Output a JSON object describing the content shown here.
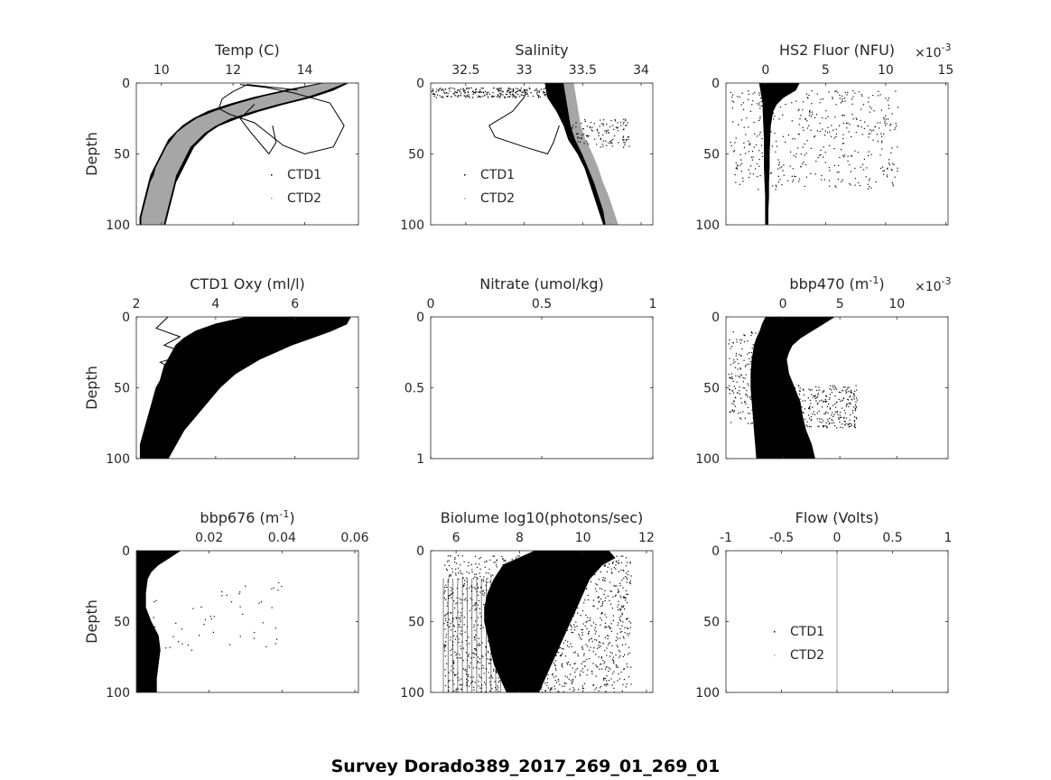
{
  "suptitle": "Survey Dorado389_2017_269_01_269_01",
  "chart_data": [
    {
      "type": "scatter",
      "title": "Temp (C)",
      "ylabel": "Depth",
      "xlim": [
        9.3,
        15.5
      ],
      "xticks": [
        "10",
        "12",
        "14"
      ],
      "xtick_values": [
        10,
        12,
        14
      ],
      "ylim": [
        0,
        100
      ],
      "yticks": [
        "0",
        "50",
        "100"
      ],
      "ytick_values": [
        0,
        50,
        100
      ],
      "legend": [
        "CTD1",
        "CTD2"
      ],
      "legend_placement": "lower-right",
      "series": [
        {
          "name": "CTD1",
          "color": "#000000",
          "style": "profile_band",
          "depth": [
            0,
            5,
            10,
            15,
            20,
            25,
            30,
            35,
            40,
            45,
            50,
            55,
            60,
            65,
            70,
            75,
            80,
            85,
            90,
            95,
            100
          ],
          "low": [
            14.5,
            13.5,
            12.6,
            11.9,
            11.3,
            10.9,
            10.6,
            10.4,
            10.2,
            10.1,
            10.0,
            9.9,
            9.8,
            9.7,
            9.65,
            9.6,
            9.55,
            9.5,
            9.45,
            9.4,
            9.4
          ],
          "high": [
            15.2,
            14.8,
            14.2,
            13.4,
            12.7,
            12.1,
            11.6,
            11.3,
            11.1,
            10.9,
            10.8,
            10.7,
            10.6,
            10.5,
            10.4,
            10.35,
            10.3,
            10.25,
            10.2,
            10.15,
            10.1
          ]
        },
        {
          "name": "CTD2",
          "color": "#a6a6a6",
          "style": "profile_band",
          "depth": [
            0,
            5,
            10,
            15,
            20,
            25,
            30,
            35,
            40,
            45,
            50,
            55,
            60,
            65,
            70,
            75,
            80,
            85,
            90,
            95,
            100
          ],
          "low": [
            14.6,
            13.7,
            12.8,
            12.1,
            11.5,
            11.0,
            10.7,
            10.45,
            10.3,
            10.15,
            10.05,
            9.95,
            9.85,
            9.8,
            9.7,
            9.65,
            9.6,
            9.55,
            9.5,
            9.45,
            9.45
          ],
          "high": [
            15.1,
            14.6,
            14.0,
            13.2,
            12.5,
            11.9,
            11.5,
            11.2,
            11.0,
            10.8,
            10.7,
            10.6,
            10.5,
            10.4,
            10.35,
            10.3,
            10.25,
            10.2,
            10.15,
            10.1,
            10.05
          ]
        },
        {
          "name": "",
          "color": "#000000",
          "style": "trace",
          "x": [
            13.8,
            12.4,
            12.0,
            11.7,
            11.6,
            11.9,
            12.6,
            13.0,
            13.4,
            14.0,
            14.8,
            15.1,
            14.7,
            13.7,
            12.9,
            12.2
          ],
          "y": [
            5,
            1,
            6,
            11,
            18,
            22,
            28,
            36,
            44,
            50,
            45,
            30,
            14,
            7,
            3,
            1
          ]
        },
        {
          "name": "",
          "color": "#000000",
          "style": "trace",
          "x": [
            12.6,
            12.2,
            12.5,
            13.0,
            13.2,
            13.1
          ],
          "y": [
            15,
            25,
            35,
            50,
            42,
            30
          ]
        }
      ]
    },
    {
      "type": "scatter",
      "title": "Salinity",
      "ylabel": "",
      "xlim": [
        32.2,
        34.1
      ],
      "xticks": [
        "32.5",
        "33",
        "33.5",
        "34"
      ],
      "xtick_values": [
        32.5,
        33,
        33.5,
        34
      ],
      "ylim": [
        0,
        100
      ],
      "yticks": [
        "0",
        "50",
        "100"
      ],
      "ytick_values": [
        0,
        50,
        100
      ],
      "legend": [
        "CTD1",
        "CTD2"
      ],
      "legend_placement": "lower-left",
      "series": [
        {
          "name": "CTD1",
          "color": "#000000",
          "style": "profile_band",
          "depth": [
            0,
            10,
            20,
            30,
            40,
            50,
            60,
            70,
            80,
            90,
            100
          ],
          "low": [
            33.18,
            33.2,
            33.28,
            33.34,
            33.38,
            33.46,
            33.52,
            33.56,
            33.6,
            33.64,
            33.68
          ],
          "high": [
            33.4,
            33.42,
            33.42,
            33.44,
            33.48,
            33.55,
            33.6,
            33.64,
            33.68,
            33.72,
            33.75
          ]
        },
        {
          "name": "CTD2",
          "color": "#a6a6a6",
          "style": "profile_band",
          "depth": [
            0,
            10,
            20,
            30,
            40,
            50,
            60,
            70,
            80,
            90,
            100
          ],
          "low": [
            33.34,
            33.36,
            33.38,
            33.4,
            33.44,
            33.5,
            33.55,
            33.6,
            33.64,
            33.68,
            33.7
          ],
          "high": [
            33.42,
            33.44,
            33.46,
            33.48,
            33.52,
            33.58,
            33.63,
            33.67,
            33.72,
            33.76,
            33.8
          ]
        },
        {
          "name": "",
          "color": "#000000",
          "style": "trace",
          "x": [
            33.0,
            32.9,
            32.7,
            32.75,
            33.0,
            33.2,
            33.25,
            33.3
          ],
          "y": [
            10,
            20,
            30,
            38,
            45,
            50,
            42,
            30
          ]
        },
        {
          "name": "",
          "color": "#000000",
          "style": "scatter_cloud",
          "xrange": [
            32.2,
            33.2
          ],
          "yrange": [
            3,
            10
          ],
          "n": 260
        },
        {
          "name": "",
          "color": "#000000",
          "style": "scatter_cloud",
          "xrange": [
            33.4,
            33.9
          ],
          "yrange": [
            25,
            45
          ],
          "n": 120
        }
      ]
    },
    {
      "type": "scatter",
      "title": "HS2 Fluor (NFU)",
      "exponent": "×10",
      "exponent_power": "-3",
      "ylabel": "",
      "xlim": [
        -3.3,
        15.2
      ],
      "xticks": [
        "0",
        "5",
        "10",
        "15"
      ],
      "xtick_values": [
        0,
        5,
        10,
        15
      ],
      "ylim": [
        0,
        100
      ],
      "yticks": [
        "0",
        "50",
        "100"
      ],
      "ytick_values": [
        0,
        50,
        100
      ],
      "series": [
        {
          "name": "",
          "color": "#000000",
          "style": "profile_band",
          "depth": [
            0,
            5,
            10,
            15,
            20,
            30,
            40,
            50,
            60,
            70,
            80,
            90,
            100
          ],
          "low": [
            -0.5,
            -0.4,
            -0.3,
            -0.2,
            -0.2,
            -0.15,
            -0.1,
            -0.1,
            -0.1,
            -0.05,
            0.0,
            0.0,
            0.0
          ],
          "high": [
            2.8,
            2.5,
            1.5,
            0.9,
            0.6,
            0.4,
            0.35,
            0.3,
            0.3,
            0.25,
            0.25,
            0.2,
            0.2
          ]
        },
        {
          "name": "",
          "color": "#000000",
          "style": "scatter_cloud",
          "xrange": [
            -3,
            11
          ],
          "yrange": [
            5,
            75
          ],
          "n": 450
        }
      ]
    },
    {
      "type": "scatter",
      "title": "CTD1 Oxy (ml/l)",
      "ylabel": "Depth",
      "xlim": [
        2.0,
        7.6
      ],
      "xticks": [
        "2",
        "4",
        "6"
      ],
      "xtick_values": [
        2,
        4,
        6
      ],
      "ylim": [
        0,
        100
      ],
      "yticks": [
        "0",
        "50",
        "100"
      ],
      "ytick_values": [
        0,
        50,
        100
      ],
      "series": [
        {
          "name": "",
          "color": "#000000",
          "style": "profile_band",
          "depth": [
            0,
            5,
            10,
            15,
            20,
            25,
            30,
            35,
            40,
            45,
            50,
            60,
            70,
            80,
            90,
            100
          ],
          "low": [
            4.8,
            4.0,
            3.5,
            3.2,
            3.0,
            2.9,
            2.8,
            2.7,
            2.65,
            2.6,
            2.5,
            2.4,
            2.3,
            2.2,
            2.1,
            2.1
          ],
          "high": [
            7.4,
            7.3,
            6.9,
            6.4,
            5.9,
            5.5,
            5.1,
            4.8,
            4.5,
            4.3,
            4.1,
            3.8,
            3.5,
            3.2,
            3.0,
            2.8
          ]
        },
        {
          "name": "",
          "color": "#000000",
          "style": "trace",
          "x": [
            2.8,
            2.5,
            3.1,
            2.7,
            3.3,
            2.6,
            3.0,
            2.9
          ],
          "y": [
            0,
            8,
            14,
            20,
            26,
            32,
            38,
            44
          ]
        }
      ]
    },
    {
      "type": "scatter",
      "title": "Nitrate (umol/kg)",
      "ylabel": "",
      "xlim": [
        0,
        1
      ],
      "xticks": [
        "0",
        "0.5",
        "1"
      ],
      "xtick_values": [
        0,
        0.5,
        1
      ],
      "ylim": [
        0,
        1
      ],
      "yticks": [
        "0",
        "0.5",
        "1"
      ],
      "ytick_values": [
        0,
        0.5,
        1
      ],
      "series": []
    },
    {
      "type": "scatter",
      "title": "bbp470 (m",
      "title_sup": "-1",
      "title_end": ")",
      "exponent": "×10",
      "exponent_power": "-3",
      "ylabel": "",
      "xlim": [
        -5,
        14.5
      ],
      "xticks": [
        "0",
        "5",
        "10"
      ],
      "xtick_values": [
        0,
        5,
        10
      ],
      "ylim": [
        0,
        100
      ],
      "yticks": [
        "0",
        "50",
        "100"
      ],
      "ytick_values": [
        0,
        50,
        100
      ],
      "series": [
        {
          "name": "",
          "color": "#000000",
          "style": "profile_band",
          "depth": [
            0,
            5,
            10,
            15,
            20,
            25,
            30,
            40,
            50,
            60,
            70,
            80,
            90,
            100
          ],
          "low": [
            -1.5,
            -1.8,
            -2.0,
            -2.3,
            -2.5,
            -2.6,
            -2.7,
            -2.8,
            -2.8,
            -2.7,
            -2.6,
            -2.5,
            -2.4,
            -2.3
          ],
          "high": [
            4.5,
            3.5,
            2.5,
            1.5,
            0.8,
            0.5,
            0.3,
            0.5,
            1.0,
            1.5,
            1.7,
            2.0,
            2.5,
            2.8
          ]
        },
        {
          "name": "",
          "color": "#000000",
          "style": "scatter_cloud",
          "xrange": [
            -4.8,
            -1
          ],
          "yrange": [
            10,
            75
          ],
          "n": 220
        },
        {
          "name": "",
          "color": "#000000",
          "style": "scatter_cloud",
          "xrange": [
            1,
            6.5
          ],
          "yrange": [
            48,
            78
          ],
          "n": 260
        }
      ]
    },
    {
      "type": "scatter",
      "title": "bbp676 (m",
      "title_sup": "-1",
      "title_end": ")",
      "ylabel": "Depth",
      "xlim": [
        0,
        0.061
      ],
      "xticks": [
        "0.02",
        "0.04",
        "0.06"
      ],
      "xtick_values": [
        0.02,
        0.04,
        0.06
      ],
      "ylim": [
        0,
        100
      ],
      "yticks": [
        "0",
        "50",
        "100"
      ],
      "ytick_values": [
        0,
        50,
        100
      ],
      "series": [
        {
          "name": "",
          "color": "#000000",
          "style": "profile_band",
          "depth": [
            0,
            5,
            10,
            15,
            20,
            30,
            40,
            50,
            60,
            70,
            80,
            90,
            100
          ],
          "low": [
            0.0002,
            0.0002,
            0.0002,
            0.0002,
            0.0002,
            0.0002,
            0.0002,
            0.0002,
            0.0002,
            0.0002,
            0.0002,
            0.0002,
            0.0002
          ],
          "high": [
            0.012,
            0.009,
            0.006,
            0.004,
            0.003,
            0.0025,
            0.0025,
            0.004,
            0.006,
            0.0065,
            0.006,
            0.0055,
            0.0055
          ]
        },
        {
          "name": "",
          "color": "#000000",
          "style": "scatter_cloud",
          "xrange": [
            0.004,
            0.04
          ],
          "yrange": [
            22,
            72
          ],
          "n": 50
        }
      ]
    },
    {
      "type": "scatter",
      "title": "Biolume log10(photons/sec)",
      "ylabel": "",
      "xlim": [
        5.2,
        12.2
      ],
      "xticks": [
        "6",
        "8",
        "10",
        "12"
      ],
      "xtick_values": [
        6,
        8,
        10,
        12
      ],
      "ylim": [
        0,
        100
      ],
      "yticks": [
        "0",
        "50",
        "100"
      ],
      "ytick_values": [
        0,
        50,
        100
      ],
      "series": [
        {
          "name": "",
          "color": "#000000",
          "style": "profile_band",
          "depth": [
            0,
            5,
            10,
            20,
            30,
            40,
            50,
            60,
            70,
            80,
            90,
            100
          ],
          "low": [
            8.5,
            8.0,
            7.5,
            7.2,
            7.0,
            6.9,
            6.9,
            7.0,
            7.1,
            7.2,
            7.4,
            7.6
          ],
          "high": [
            10.8,
            11.0,
            10.6,
            10.2,
            10.0,
            9.8,
            9.6,
            9.4,
            9.2,
            9.0,
            8.8,
            8.6
          ]
        },
        {
          "name": "",
          "color": "#000000",
          "style": "scatter_cloud",
          "xrange": [
            5.6,
            11.5
          ],
          "yrange": [
            3,
            100
          ],
          "n": 1500
        },
        {
          "name": "",
          "color": "#000000",
          "style": "stripes",
          "x": [
            5.6,
            5.75,
            5.9,
            6.05,
            6.2,
            6.35,
            6.5,
            6.65,
            6.8,
            6.95,
            7.1,
            7.25,
            7.4
          ],
          "ystart": 20,
          "yend": 100
        }
      ]
    },
    {
      "type": "scatter",
      "title": "Flow (Volts)",
      "ylabel": "",
      "xlim": [
        -1,
        1
      ],
      "xticks": [
        "-1",
        "-0.5",
        "0",
        "0.5",
        "1"
      ],
      "xtick_values": [
        -1,
        -0.5,
        0,
        0.5,
        1
      ],
      "ylim": [
        0,
        100
      ],
      "yticks": [
        "0",
        "50",
        "100"
      ],
      "ytick_values": [
        0,
        50,
        100
      ],
      "legend": [
        "CTD1",
        "CTD2"
      ],
      "legend_placement": "lower-left",
      "series": [
        {
          "name": "CTD1",
          "color": "#000000",
          "style": "hidden",
          "x": [],
          "y": []
        },
        {
          "name": "CTD2",
          "color": "#a6a6a6",
          "style": "vline",
          "x": [
            0,
            0
          ],
          "y": [
            0,
            100
          ]
        }
      ]
    }
  ]
}
